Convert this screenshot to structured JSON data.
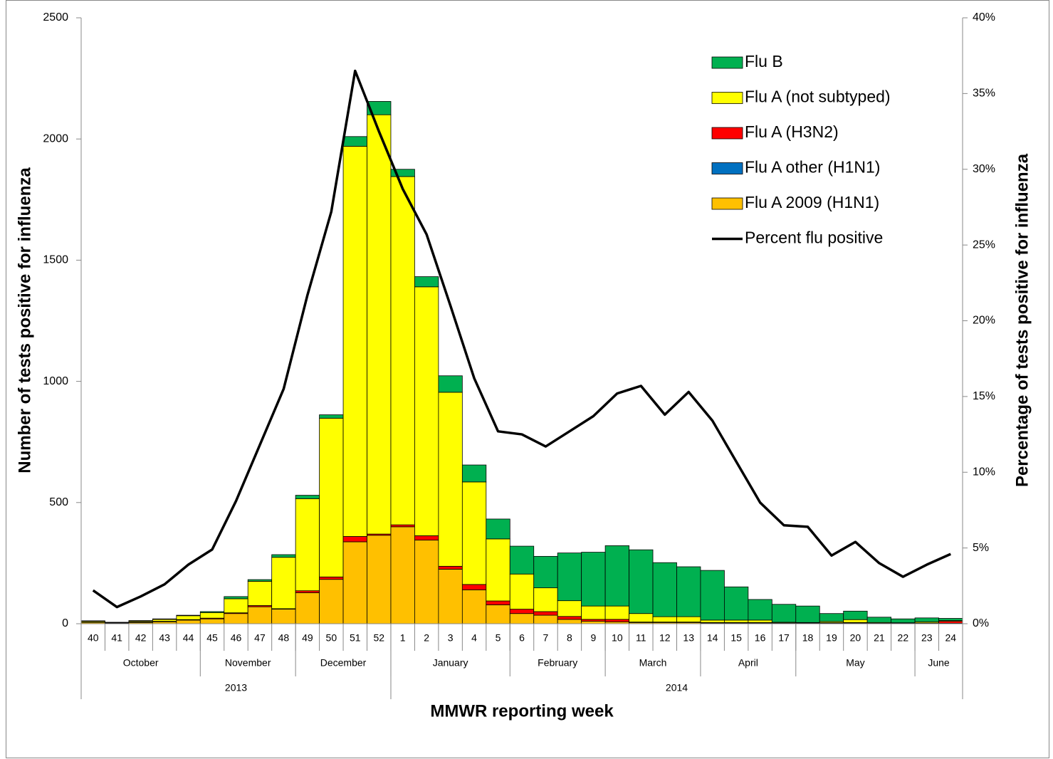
{
  "chart_data": {
    "type": "bar",
    "stacked": true,
    "y_label": "Number of tests positive for influenza",
    "y2_label": "Percentage of tests positive for influenza",
    "x_label": "MMWR reporting week",
    "categories": [
      "40",
      "41",
      "42",
      "43",
      "44",
      "45",
      "46",
      "47",
      "48",
      "49",
      "50",
      "51",
      "52",
      "1",
      "2",
      "3",
      "4",
      "5",
      "6",
      "7",
      "8",
      "9",
      "10",
      "11",
      "12",
      "13",
      "14",
      "15",
      "16",
      "17",
      "18",
      "19",
      "20",
      "21",
      "22",
      "23",
      "24"
    ],
    "month_groups": [
      {
        "label": "October",
        "span": 5
      },
      {
        "label": "November",
        "span": 4
      },
      {
        "label": "December",
        "span": 4
      },
      {
        "label": "January",
        "span": 5
      },
      {
        "label": "February",
        "span": 4
      },
      {
        "label": "March",
        "span": 4
      },
      {
        "label": "April",
        "span": 4
      },
      {
        "label": "May",
        "span": 5
      },
      {
        "label": "June",
        "span": 2
      }
    ],
    "year_groups": [
      {
        "label": "2013",
        "span": 13
      },
      {
        "label": "2014",
        "span": 24
      }
    ],
    "ylim": [
      0,
      2500
    ],
    "yticks": [
      0,
      500,
      1000,
      1500,
      2000,
      2500
    ],
    "y2lim": [
      0,
      40
    ],
    "y2ticks": [
      {
        "value": 0,
        "label": "0%"
      },
      {
        "value": 5,
        "label": "5%"
      },
      {
        "value": 10,
        "label": "10%"
      },
      {
        "value": 15,
        "label": "15%"
      },
      {
        "value": 20,
        "label": "20%"
      },
      {
        "value": 25,
        "label": "25%"
      },
      {
        "value": 30,
        "label": "30%"
      },
      {
        "value": 35,
        "label": "35%"
      },
      {
        "value": 40,
        "label": "40%"
      }
    ],
    "series": [
      {
        "name": "Flu A 2009 (H1N1)",
        "color": "#FFC000",
        "values": [
          5,
          2,
          5,
          8,
          15,
          20,
          42,
          70,
          60,
          128,
          183,
          338,
          365,
          400,
          345,
          225,
          140,
          78,
          42,
          35,
          18,
          10,
          8,
          5,
          5,
          5,
          3,
          3,
          3,
          2,
          2,
          2,
          3,
          1,
          1,
          2,
          2
        ]
      },
      {
        "name": "Flu A other (H1N1)",
        "color": "#0070C0",
        "values": [
          0,
          0,
          0,
          0,
          0,
          0,
          0,
          0,
          0,
          0,
          0,
          0,
          0,
          0,
          0,
          0,
          0,
          0,
          0,
          0,
          0,
          0,
          0,
          0,
          0,
          0,
          0,
          0,
          0,
          0,
          0,
          0,
          0,
          0,
          0,
          0,
          0
        ]
      },
      {
        "name": "Flu A (H3N2)",
        "color": "#FF0000",
        "values": [
          1,
          1,
          2,
          2,
          2,
          3,
          3,
          5,
          2,
          8,
          10,
          22,
          5,
          8,
          18,
          12,
          22,
          16,
          18,
          15,
          12,
          8,
          10,
          2,
          2,
          2,
          2,
          2,
          2,
          1,
          1,
          2,
          2,
          1,
          1,
          1,
          8
        ]
      },
      {
        "name": "Flu A (not subtyped)",
        "color": "#FFFF00",
        "values": [
          4,
          2,
          4,
          8,
          16,
          23,
          58,
          100,
          212,
          380,
          655,
          1610,
          1730,
          1437,
          1027,
          718,
          423,
          256,
          145,
          98,
          65,
          55,
          55,
          35,
          22,
          22,
          10,
          10,
          10,
          3,
          2,
          5,
          12,
          3,
          2,
          5,
          3
        ]
      },
      {
        "name": "Flu B",
        "color": "#00B050",
        "values": [
          2,
          1,
          2,
          2,
          2,
          4,
          9,
          7,
          11,
          14,
          14,
          40,
          55,
          30,
          42,
          68,
          70,
          82,
          115,
          130,
          197,
          222,
          249,
          263,
          223,
          206,
          205,
          137,
          85,
          74,
          68,
          33,
          35,
          22,
          16,
          16,
          9
        ]
      },
      {
        "name": "Percent flu positive",
        "type": "line",
        "axis": "y2",
        "color": "#000000",
        "values": [
          2.2,
          1.1,
          1.8,
          2.6,
          3.9,
          4.9,
          8.1,
          11.8,
          15.5,
          21.7,
          27.2,
          36.5,
          32.5,
          28.7,
          25.7,
          21.0,
          16.2,
          12.7,
          12.5,
          11.7,
          12.7,
          13.7,
          15.2,
          15.7,
          13.8,
          15.3,
          13.4,
          10.7,
          8.0,
          6.5,
          6.4,
          4.5,
          5.4,
          4.0,
          3.1,
          3.9,
          4.6
        ]
      }
    ],
    "legend": "upper-right"
  }
}
